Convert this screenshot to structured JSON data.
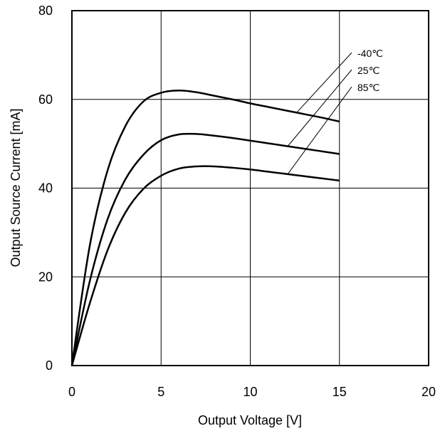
{
  "chart_data": {
    "type": "line",
    "xlabel": "Output Voltage [V]",
    "ylabel": "Output Source Current [mA]",
    "xlim": [
      0,
      20
    ],
    "ylim": [
      0,
      80
    ],
    "xticks": [
      "0",
      "5",
      "10",
      "15",
      "20"
    ],
    "yticks": [
      "0",
      "20",
      "40",
      "60",
      "80"
    ],
    "grid": true,
    "x": [
      0,
      1,
      2,
      3,
      4,
      5,
      6,
      7,
      8,
      9,
      10,
      11,
      12,
      13,
      14,
      15
    ],
    "series": [
      {
        "name": "-40℃",
        "values": [
          0,
          27,
          44,
          54,
          59.5,
          61.5,
          62,
          61.6,
          60.8,
          60,
          59.1,
          58.3,
          57.5,
          56.7,
          55.9,
          55
        ]
      },
      {
        "name": "25℃",
        "values": [
          0,
          19,
          33,
          42,
          47.5,
          50.8,
          52.1,
          52.2,
          51.8,
          51.3,
          50.7,
          50.1,
          49.5,
          48.9,
          48.3,
          47.7
        ]
      },
      {
        "name": "85℃",
        "values": [
          0,
          14,
          26,
          34.5,
          39.8,
          42.8,
          44.4,
          44.9,
          44.9,
          44.6,
          44.2,
          43.7,
          43.2,
          42.7,
          42.2,
          41.7
        ]
      }
    ],
    "legend": {
      "placement": "top-right",
      "style": "leader-lines"
    }
  }
}
